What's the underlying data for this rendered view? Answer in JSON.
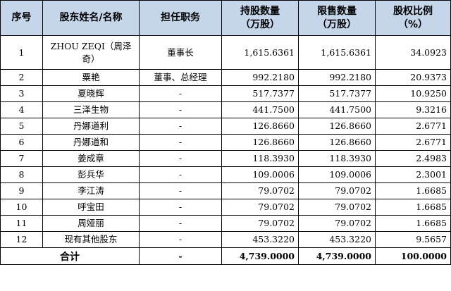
{
  "headers": {
    "seq": "序号",
    "name": "股东姓名/名称",
    "position": "担任职务",
    "shares_held": [
      "持股数量",
      "（万股）"
    ],
    "restricted": [
      "限售数量",
      "（万股）"
    ],
    "ratio": [
      "股权比例",
      "（%）"
    ]
  },
  "rows": [
    {
      "seq": "1",
      "name": "ZHOU ZEQI（周泽奇）",
      "position": "董事长",
      "shares": "1,615.6361",
      "restricted": "1,615.6361",
      "ratio": "34.0923"
    },
    {
      "seq": "2",
      "name": "粟艳",
      "position": "董事、总经理",
      "shares": "992.2180",
      "restricted": "992.2180",
      "ratio": "20.9373"
    },
    {
      "seq": "3",
      "name": "夏晓辉",
      "position": "-",
      "shares": "517.7377",
      "restricted": "517.7377",
      "ratio": "10.9250"
    },
    {
      "seq": "4",
      "name": "三泽生物",
      "position": "-",
      "shares": "441.7500",
      "restricted": "441.7500",
      "ratio": "9.3216"
    },
    {
      "seq": "5",
      "name": "丹娜道利",
      "position": "-",
      "shares": "126.8660",
      "restricted": "126.8660",
      "ratio": "2.6771"
    },
    {
      "seq": "6",
      "name": "丹娜道和",
      "position": "-",
      "shares": "126.8660",
      "restricted": "126.8660",
      "ratio": "2.6771"
    },
    {
      "seq": "7",
      "name": "姜成章",
      "position": "-",
      "shares": "118.3930",
      "restricted": "118.3930",
      "ratio": "2.4983"
    },
    {
      "seq": "8",
      "name": "彭兵华",
      "position": "-",
      "shares": "109.0006",
      "restricted": "109.0006",
      "ratio": "2.3001"
    },
    {
      "seq": "9",
      "name": "李江涛",
      "position": "-",
      "shares": "79.0702",
      "restricted": "79.0702",
      "ratio": "1.6685"
    },
    {
      "seq": "10",
      "name": "呼宝田",
      "position": "-",
      "shares": "79.0702",
      "restricted": "79.0702",
      "ratio": "1.6685"
    },
    {
      "seq": "11",
      "name": "周娅丽",
      "position": "-",
      "shares": "79.0702",
      "restricted": "79.0702",
      "ratio": "1.6685"
    },
    {
      "seq": "12",
      "name": "现有其他股东",
      "position": "-",
      "shares": "453.3220",
      "restricted": "453.3220",
      "ratio": "9.5657"
    }
  ],
  "total": {
    "label": "合计",
    "position": "-",
    "shares": "4,739.0000",
    "restricted": "4,739.0000",
    "ratio": "100.0000"
  }
}
